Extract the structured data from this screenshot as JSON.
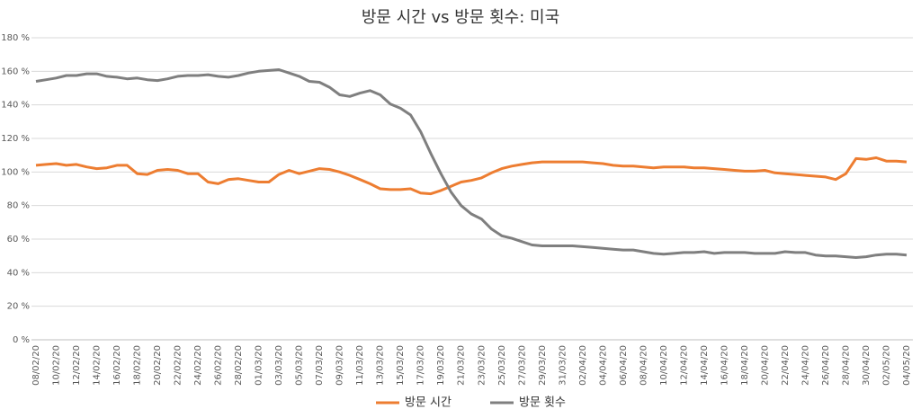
{
  "chart_data": {
    "type": "line",
    "title": "방문 시간 vs 방문 횟수: 미국",
    "categories": [
      "08/02/20",
      null,
      "10/02/20",
      null,
      "12/02/20",
      null,
      "14/02/20",
      null,
      "16/02/20",
      null,
      "18/02/20",
      null,
      "20/02/20",
      null,
      "22/02/20",
      null,
      "24/02/20",
      null,
      "26/02/20",
      null,
      "28/02/20",
      null,
      "01/03/20",
      null,
      "03/03/20",
      null,
      "05/03/20",
      null,
      "07/03/20",
      null,
      "09/03/20",
      null,
      "11/03/20",
      null,
      "13/03/20",
      null,
      "15/03/20",
      null,
      "17/03/20",
      null,
      "19/03/20",
      null,
      "21/03/20",
      null,
      "23/03/20",
      null,
      "25/03/20",
      null,
      "27/03/20",
      null,
      "29/03/20",
      null,
      "31/03/20",
      null,
      "02/04/20",
      null,
      "04/04/20",
      null,
      "06/04/20",
      null,
      "08/04/20",
      null,
      "10/04/20",
      null,
      "12/04/20",
      null,
      "14/04/20",
      null,
      "16/04/20",
      null,
      "18/04/20",
      null,
      "20/04/20",
      null,
      "22/04/20",
      null,
      "24/04/20",
      null,
      "26/04/20",
      null,
      "28/04/20",
      null,
      "30/04/20",
      null,
      "02/05/20",
      null,
      "04/05/20"
    ],
    "series": [
      {
        "name": "방문 시간",
        "color": "#ED7D31",
        "values": [
          104,
          104.5,
          105,
          104,
          104.5,
          103,
          102,
          102.5,
          104,
          104,
          99,
          98.5,
          101,
          101.5,
          101,
          99,
          99,
          94,
          93,
          95.5,
          96,
          95,
          94,
          94,
          98.5,
          101,
          99,
          100.5,
          102,
          101.5,
          100,
          98,
          95.5,
          93,
          90,
          89.5,
          89.5,
          90,
          87.5,
          87,
          89,
          91.5,
          94,
          95,
          96.5,
          99.5,
          102,
          103.5,
          104.5,
          105.5,
          106,
          106,
          106,
          106,
          106,
          105.5,
          105,
          104,
          103.5,
          103.5,
          103,
          102.5,
          103,
          103,
          103,
          102.5,
          102.5,
          102,
          101.5,
          101,
          100.5,
          100.5,
          101,
          99.5,
          99,
          98.5,
          98,
          97.5,
          97,
          95.5,
          99,
          108,
          107.5,
          108.5,
          106.5,
          106.5,
          106
        ]
      },
      {
        "name": "방문 횟수",
        "color": "#7F7F7F",
        "values": [
          154,
          155,
          156,
          157.5,
          157.5,
          158.5,
          158.5,
          157,
          156.5,
          155.5,
          156,
          155,
          154.5,
          155.5,
          157,
          157.5,
          157.5,
          158,
          157,
          156.5,
          157.5,
          159,
          160,
          160.5,
          161,
          159,
          157,
          154,
          153.5,
          150.5,
          146,
          145,
          147,
          148.5,
          146,
          140.5,
          138,
          134,
          124,
          111,
          99,
          88,
          80,
          75,
          72,
          66,
          62,
          60.5,
          58.5,
          56.5,
          56,
          56,
          56,
          56,
          55.5,
          55,
          54.5,
          54,
          53.5,
          53.5,
          52.5,
          51.5,
          51,
          51.5,
          52,
          52,
          52.5,
          51.5,
          52,
          52,
          52,
          51.5,
          51.5,
          51.5,
          52.5,
          52,
          52,
          50.5,
          50,
          50,
          49.5,
          49,
          49.5,
          50.5,
          51,
          51,
          50.5
        ]
      }
    ],
    "ylim": [
      0,
      180
    ],
    "yticks": [
      {
        "value": 0,
        "label": "0 %"
      },
      {
        "value": 20,
        "label": "20 %"
      },
      {
        "value": 40,
        "label": "40 %"
      },
      {
        "value": 60,
        "label": "60 %"
      },
      {
        "value": 80,
        "label": "80 %"
      },
      {
        "value": 100,
        "label": "100 %"
      },
      {
        "value": 120,
        "label": "120 %"
      },
      {
        "value": 140,
        "label": "140 %"
      },
      {
        "value": 160,
        "label": "160 %"
      },
      {
        "value": 180,
        "label": "180 %"
      }
    ],
    "grid": true,
    "legend": "bottom"
  }
}
